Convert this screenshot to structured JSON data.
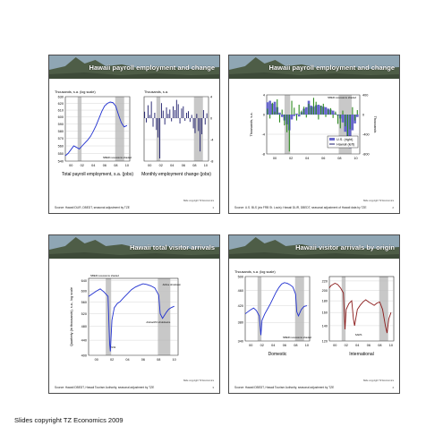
{
  "footer": "Slides copyright TZ Economics 2009",
  "colors": {
    "blue": "#1f2fd0",
    "green": "#2e8b1f",
    "red": "#8b1a1a",
    "bar": "#c8c8c8",
    "purple": "#6666cc",
    "navy": "#1a1a6a"
  },
  "slides": [
    {
      "title": "Hawaii payroll employment and change",
      "source": "Source: Hawaii DLIR, DBEDT, seasonal adjustment by TZE",
      "copyright": "Slide copyright TZ Economics",
      "page": "1"
    },
    {
      "title": "Hawaii payroll employment and change",
      "source": "Source: U.S. BLS (via FRB St. Louis): Hawaii DLIR, DBEDT, seasonal adjustment of Hawaii data by TZE",
      "copyright": "Slide copyright TZ Economics",
      "page": "2"
    },
    {
      "title": "Hawaii total visitor arrivals",
      "source": "Source: Hawaii DBEDT, Hawaii Tourism Authority, seasonal adjustment by TZE",
      "copyright": "Slide copyright TZ Economics",
      "page": "3"
    },
    {
      "title": "Hawaii visitor arrivals by origin",
      "source": "Source: Hawaii DBEDT, Hawaii Tourism Authority, seasonal adjustment by TZE",
      "copyright": "Slide copyright TZ Economics",
      "page": "4"
    }
  ],
  "chart_data": [
    {
      "id": "s1-left",
      "type": "line",
      "slide": 1,
      "title": "Total payroll employment, s.a. (jobs)",
      "ylabel": "Thousands, s.a. (log scale)",
      "annotations": [
        "NBER recessions shaded"
      ],
      "xlim": [
        1999,
        2010.5
      ],
      "ylim": [
        540,
        630
      ],
      "log_y": true,
      "yticks": [
        540,
        550,
        560,
        570,
        580,
        590,
        600,
        610,
        620,
        630
      ],
      "xticks": [
        "00",
        "02",
        "04",
        "06",
        "08",
        "10"
      ],
      "recessions": [
        [
          2001.2,
          2001.9
        ],
        [
          2007.9,
          2009.5
        ]
      ],
      "series": [
        {
          "x": [
            1999,
            1999.5,
            2000,
            2000.5,
            2001,
            2001.5,
            2002,
            2002.5,
            2003,
            2003.5,
            2004,
            2004.5,
            2005,
            2005.5,
            2006,
            2006.5,
            2007,
            2007.5,
            2008,
            2008.5,
            2009,
            2009.5,
            2010
          ],
          "y": [
            547,
            550,
            555,
            560,
            558,
            556,
            560,
            564,
            568,
            573,
            580,
            588,
            598,
            608,
            616,
            620,
            622,
            621,
            616,
            603,
            592,
            586,
            588
          ]
        }
      ]
    },
    {
      "id": "s1-right",
      "type": "bar",
      "slide": 1,
      "title": "Monthly employment change (jobs)",
      "ylabel": "Thousands, s.a.",
      "xlim": [
        1999,
        2010.5
      ],
      "ylim": [
        -8,
        4
      ],
      "yticks": [
        -8,
        -4,
        0,
        4
      ],
      "xticks": [
        "00",
        "02",
        "04",
        "06",
        "08",
        "10"
      ],
      "recessions": [
        [
          2001.2,
          2001.9
        ],
        [
          2007.9,
          2009.5
        ]
      ],
      "x": [
        1999.1,
        1999.4,
        1999.7,
        2000.0,
        2000.3,
        2000.6,
        2000.9,
        2001.2,
        2001.5,
        2001.8,
        2002.1,
        2002.4,
        2002.7,
        2003.0,
        2003.3,
        2003.6,
        2003.9,
        2004.2,
        2004.5,
        2004.8,
        2005.1,
        2005.4,
        2005.7,
        2006.0,
        2006.3,
        2006.6,
        2006.9,
        2007.2,
        2007.5,
        2007.8,
        2008.1,
        2008.4,
        2008.7,
        2009.0,
        2009.3,
        2009.6,
        2009.9,
        2010.2
      ],
      "values": [
        1.2,
        -0.8,
        2.4,
        0.6,
        3.1,
        -1.6,
        1.0,
        -2.2,
        -3.6,
        -7.5,
        2.8,
        1.4,
        -1.2,
        2.0,
        0.8,
        1.6,
        -0.6,
        2.2,
        1.5,
        3.4,
        2.6,
        -1.0,
        1.8,
        2.2,
        -0.5,
        1.0,
        1.3,
        -0.7,
        0.6,
        -1.9,
        -2.8,
        0.8,
        -2.4,
        -6.2,
        -3.0,
        1.5,
        -1.2,
        0.9
      ]
    },
    {
      "id": "s2",
      "type": "bar",
      "slide": 2,
      "ylabel": "Thousands, s.a.",
      "y2label": "Thousands",
      "annotations": [
        "NBER recessions shaded"
      ],
      "xlim": [
        1999,
        2010.5
      ],
      "ylim": [
        -8,
        4
      ],
      "yticks": [
        4,
        0,
        -4,
        -8
      ],
      "y2ticks": [
        "400",
        "0",
        "-400",
        "-800"
      ],
      "xticks": [
        "00",
        "02",
        "04",
        "06",
        "08",
        "10"
      ],
      "recessions": [
        [
          2001.2,
          2001.9
        ],
        [
          2007.9,
          2009.5
        ]
      ],
      "legend": [
        "U.S. (right)",
        "Hawaii (left)"
      ],
      "x": [
        1999.1,
        1999.4,
        1999.7,
        2000.0,
        2000.3,
        2000.6,
        2000.9,
        2001.2,
        2001.5,
        2001.8,
        2002.1,
        2002.4,
        2002.7,
        2003.0,
        2003.3,
        2003.6,
        2003.9,
        2004.2,
        2004.5,
        2004.8,
        2005.1,
        2005.4,
        2005.7,
        2006.0,
        2006.3,
        2006.6,
        2006.9,
        2007.2,
        2007.5,
        2007.8,
        2008.1,
        2008.4,
        2008.7,
        2009.0,
        2009.3,
        2009.6,
        2009.9,
        2010.2
      ],
      "us": [
        2.5,
        2.8,
        2.2,
        2.6,
        1.5,
        0.4,
        -0.5,
        -1.2,
        -2.0,
        -3.2,
        -1.0,
        -0.3,
        0.2,
        -0.4,
        0.5,
        1.2,
        1.5,
        2.8,
        1.8,
        1.6,
        1.9,
        2.0,
        1.8,
        1.6,
        1.5,
        1.2,
        1.0,
        0.8,
        0.2,
        -0.2,
        -0.8,
        -1.6,
        -3.5,
        -6.5,
        -6.8,
        -3.2,
        -1.8,
        -0.5
      ],
      "hawaii": [
        1.2,
        -0.8,
        2.4,
        0.6,
        3.1,
        -1.6,
        1.0,
        -2.2,
        -3.6,
        -7.5,
        2.8,
        1.4,
        -1.2,
        2.0,
        0.8,
        1.6,
        -0.6,
        2.2,
        1.5,
        3.4,
        2.6,
        -1.0,
        1.8,
        2.2,
        -0.5,
        1.0,
        1.3,
        -0.7,
        0.6,
        -1.9,
        -2.8,
        0.8,
        -2.4,
        -6.2,
        -3.0,
        1.5,
        -1.2,
        0.9
      ]
    },
    {
      "id": "s3",
      "type": "line",
      "slide": 3,
      "ylabel": "Quarterly (in thousands), s.a., log scale",
      "annotations": [
        "NBER recessions shaded",
        "9/11",
        "Aloha/ATA shutdowns",
        "Airline shutdown"
      ],
      "xlim": [
        1999,
        2010.5
      ],
      "ylim": [
        400,
        650
      ],
      "log_y": true,
      "yticks": [
        640,
        600,
        560,
        520,
        480,
        440,
        400
      ],
      "xticks": [
        "00",
        "02",
        "04",
        "06",
        "08",
        "10"
      ],
      "recessions": [
        [
          2001.2,
          2001.9
        ],
        [
          2007.9,
          2009.5
        ]
      ],
      "series": [
        {
          "x": [
            1999,
            1999.5,
            2000,
            2000.5,
            2001,
            2001.5,
            2001.7,
            2001.8,
            2002,
            2002.3,
            2002.7,
            2003,
            2003.5,
            2004,
            2004.5,
            2005,
            2005.5,
            2006,
            2006.5,
            2007,
            2007.5,
            2008,
            2008.2,
            2008.5,
            2009,
            2009.3,
            2009.6,
            2010
          ],
          "y": [
            580,
            590,
            600,
            608,
            596,
            580,
            430,
            410,
            500,
            540,
            555,
            560,
            575,
            590,
            605,
            615,
            622,
            628,
            625,
            620,
            612,
            585,
            520,
            505,
            525,
            535,
            540,
            545
          ]
        }
      ]
    },
    {
      "id": "s4-left",
      "type": "line",
      "slide": 4,
      "title": "Domestic",
      "ylabel": "Thousands, s.a. (log scale)",
      "annotations": [
        "NBER recessions shaded"
      ],
      "xlim": [
        1999,
        2010.5
      ],
      "ylim": [
        340,
        500
      ],
      "log_y": true,
      "yticks": [
        500,
        460,
        420,
        380,
        340
      ],
      "xticks": [
        "00",
        "02",
        "04",
        "06",
        "08",
        "10"
      ],
      "recessions": [
        [
          2001.2,
          2001.9
        ],
        [
          2007.9,
          2009.5
        ]
      ],
      "series": [
        {
          "x": [
            1999,
            1999.5,
            2000,
            2000.5,
            2001,
            2001.5,
            2001.8,
            2002,
            2002.5,
            2003,
            2003.5,
            2004,
            2004.5,
            2005,
            2005.5,
            2006,
            2006.5,
            2007,
            2007.5,
            2008,
            2008.2,
            2008.5,
            2009,
            2009.5,
            2010
          ],
          "y": [
            400,
            405,
            410,
            414,
            408,
            395,
            352,
            385,
            400,
            412,
            425,
            440,
            455,
            468,
            478,
            482,
            480,
            476,
            470,
            450,
            405,
            395,
            410,
            418,
            420
          ]
        }
      ]
    },
    {
      "id": "s4-right",
      "type": "line",
      "slide": 4,
      "title": "International",
      "annotations": [
        "SARS"
      ],
      "xlim": [
        1999,
        2010.5
      ],
      "ylim": [
        120,
        230
      ],
      "log_y": true,
      "yticks": [
        220,
        200,
        180,
        160,
        140,
        120
      ],
      "xticks": [
        "00",
        "02",
        "04",
        "06",
        "08",
        "10"
      ],
      "recessions": [
        [
          2001.2,
          2001.9
        ],
        [
          2007.9,
          2009.5
        ]
      ],
      "series": [
        {
          "x": [
            1999,
            1999.3,
            1999.6,
            2000,
            2000.5,
            2001,
            2001.5,
            2001.8,
            2002,
            2002.5,
            2003,
            2003.3,
            2003.5,
            2004,
            2004.5,
            2005,
            2005.5,
            2006,
            2006.5,
            2007,
            2007.5,
            2008,
            2008.5,
            2009,
            2009.3,
            2009.6,
            2010
          ],
          "y": [
            205,
            210,
            212,
            215,
            212,
            205,
            195,
            135,
            165,
            175,
            180,
            150,
            140,
            165,
            172,
            178,
            182,
            178,
            175,
            172,
            176,
            178,
            165,
            140,
            130,
            150,
            160
          ]
        }
      ]
    }
  ]
}
